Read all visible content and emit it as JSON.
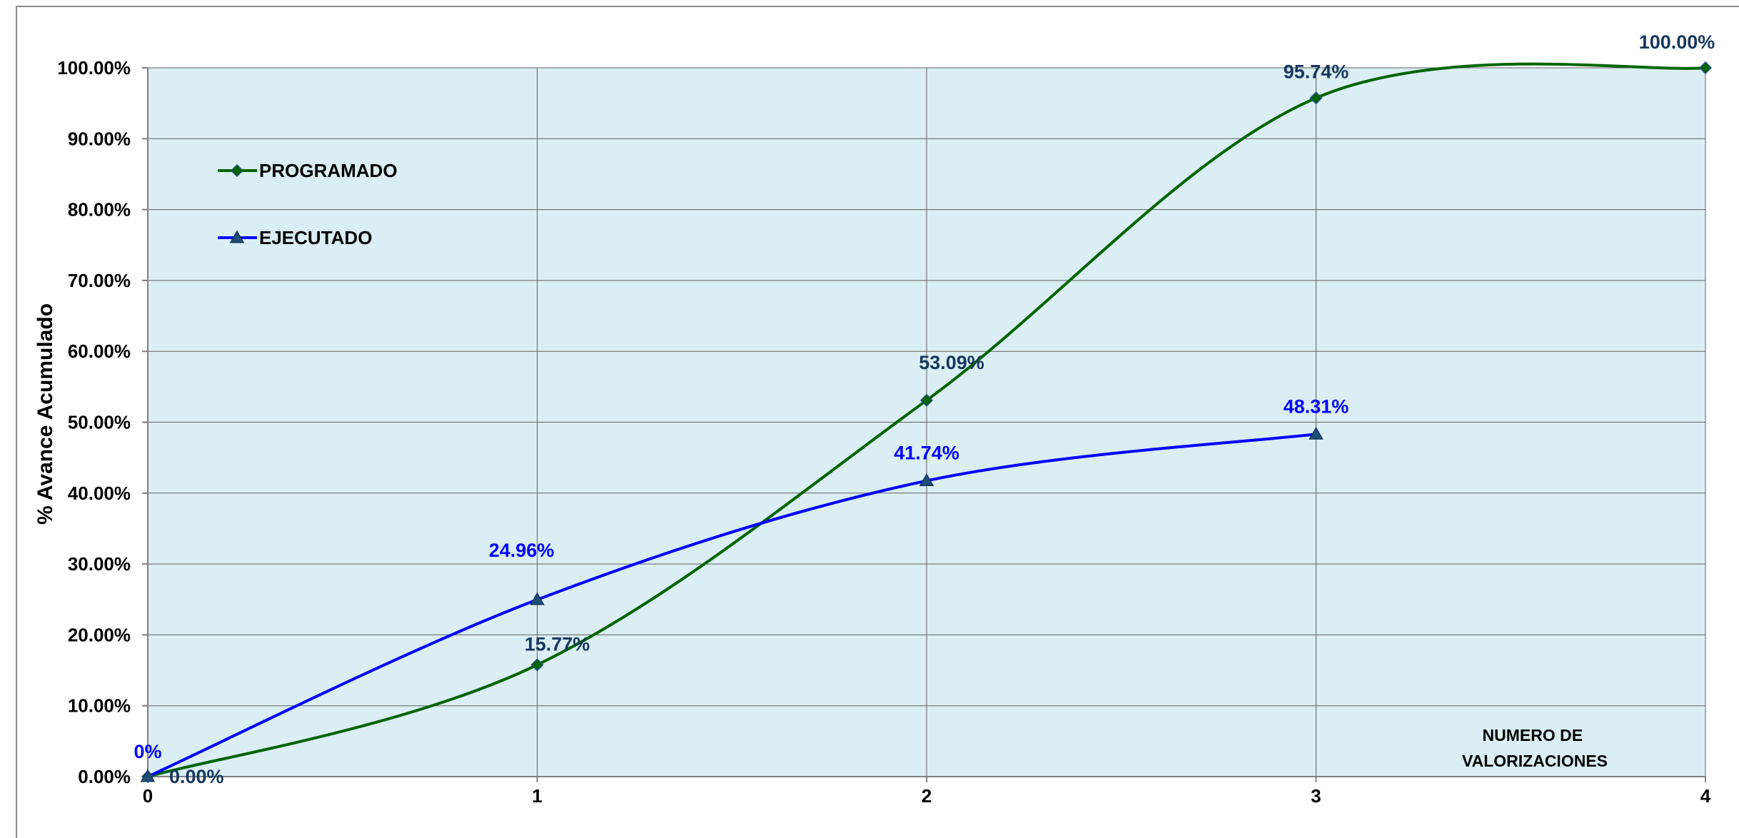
{
  "chart_data": {
    "type": "line",
    "title": "",
    "ylabel": "% Avance Acumulado",
    "xlabel": [
      "NUMERO DE",
      "VALORIZACIONES"
    ],
    "x": [
      0,
      1,
      2,
      3,
      4
    ],
    "x_tick_labels": [
      "0",
      "1",
      "2",
      "3",
      "4"
    ],
    "y_tick_labels": [
      "0.00%",
      "10.00%",
      "20.00%",
      "30.00%",
      "40.00%",
      "50.00%",
      "60.00%",
      "70.00%",
      "80.00%",
      "90.00%",
      "100.00%"
    ],
    "xlim": [
      0,
      4
    ],
    "ylim": [
      0,
      100
    ],
    "grid": true,
    "smooth": true,
    "plot_background": "#daeef3",
    "legend_position": "top-left",
    "series": [
      {
        "name": "PROGRAMADO",
        "color": "#006400",
        "marker": "diamond",
        "label_color": "#17375e",
        "x": [
          0,
          1,
          2,
          3,
          4
        ],
        "values": [
          0,
          15.77,
          53.09,
          95.74,
          100
        ],
        "data_labels": [
          "0.00%",
          "15.77%",
          "53.09%",
          "95.74%",
          "100.00%"
        ]
      },
      {
        "name": "EJECUTADO",
        "color": "#0000ff",
        "marker": "triangle",
        "label_color": "#0000ff",
        "x": [
          0,
          1,
          2,
          3
        ],
        "values": [
          0,
          24.96,
          41.74,
          48.31
        ],
        "data_labels": [
          "0%",
          "24.96%",
          "41.74%",
          "48.31%"
        ]
      }
    ]
  }
}
